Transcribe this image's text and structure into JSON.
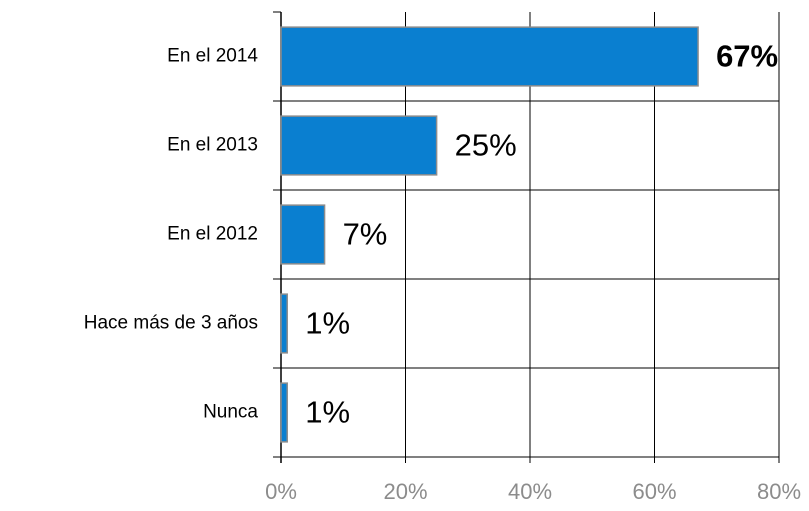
{
  "chart_data": {
    "type": "bar",
    "orientation": "horizontal",
    "categories": [
      "En el 2014",
      "En el 2013",
      "En el 2012",
      "Hace más de 3 años",
      "Nunca"
    ],
    "values": [
      67,
      25,
      7,
      1,
      1
    ],
    "value_labels": [
      "67%",
      "25%",
      "7%",
      "1%",
      "1%"
    ],
    "color": "#0a7fd0",
    "xlim": [
      0,
      80
    ],
    "xticks": [
      {
        "value": 0,
        "label": "0%"
      },
      {
        "value": 20,
        "label": "20%"
      },
      {
        "value": 40,
        "label": "40%"
      },
      {
        "value": 60,
        "label": "60%"
      },
      {
        "value": 80,
        "label": "80%"
      }
    ],
    "grid": true
  }
}
